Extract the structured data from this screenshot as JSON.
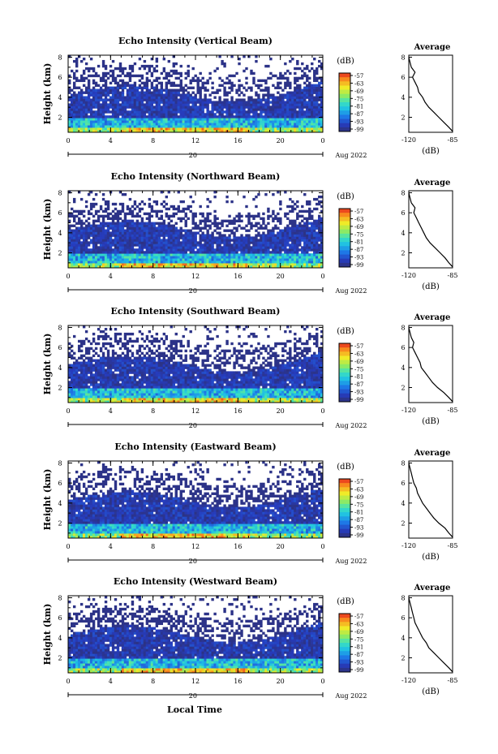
{
  "figure": {
    "x_axis_title": "Local Time",
    "date_label": "Aug 2022",
    "day_label": "20",
    "y_axis_title": "Height (km)",
    "colorbar_unit": "(dB)",
    "profile_title": "Average",
    "profile_xlabel": "(dB)"
  },
  "chart_data": [
    {
      "type": "heatmap",
      "title": "Echo Intensity (Vertical Beam)",
      "x_ticks": [
        "0",
        "4",
        "8",
        "12",
        "16",
        "20",
        "0"
      ],
      "xlim": [
        0,
        24
      ],
      "xlabel": "",
      "y_ticks": [
        "2",
        "4",
        "6",
        "8"
      ],
      "ylim": [
        0.5,
        8.2
      ],
      "ylabel": "Height (km)",
      "colorbar": {
        "unit": "(dB)",
        "ticks": [
          "-57",
          "-63",
          "-69",
          "-75",
          "-81",
          "-87",
          "-93",
          "-99"
        ],
        "range": [
          -99,
          -57
        ]
      },
      "average_profile": {
        "title": "Average",
        "xlabel": "(dB)",
        "x_ticks": [
          "-120",
          "-85"
        ],
        "xlim": [
          -120,
          -85
        ],
        "y_ticks": [
          "2",
          "4",
          "6",
          "8"
        ],
        "ylim": [
          0.5,
          8.2
        ],
        "points": [
          [
            -85,
            0.6
          ],
          [
            -88,
            1.0
          ],
          [
            -92,
            1.5
          ],
          [
            -96,
            2.0
          ],
          [
            -100,
            2.5
          ],
          [
            -104,
            3.0
          ],
          [
            -107,
            3.5
          ],
          [
            -109,
            4.0
          ],
          [
            -112,
            4.5
          ],
          [
            -113,
            5.0
          ],
          [
            -115,
            5.5
          ],
          [
            -117,
            6.0
          ],
          [
            -115,
            6.5
          ],
          [
            -118,
            7.0
          ],
          [
            -119,
            7.5
          ],
          [
            -120,
            8.0
          ]
        ]
      }
    },
    {
      "type": "heatmap",
      "title": "Echo Intensity (Northward Beam)",
      "x_ticks": [
        "0",
        "4",
        "8",
        "12",
        "16",
        "20",
        "0"
      ],
      "xlim": [
        0,
        24
      ],
      "xlabel": "",
      "y_ticks": [
        "2",
        "4",
        "6",
        "8"
      ],
      "ylim": [
        0.5,
        8.2
      ],
      "ylabel": "Height (km)",
      "colorbar": {
        "unit": "(dB)",
        "ticks": [
          "-57",
          "-63",
          "-69",
          "-75",
          "-81",
          "-87",
          "-93",
          "-99"
        ],
        "range": [
          -99,
          -57
        ]
      },
      "average_profile": {
        "title": "Average",
        "xlabel": "(dB)",
        "x_ticks": [
          "-120",
          "-85"
        ],
        "xlim": [
          -120,
          -85
        ],
        "y_ticks": [
          "2",
          "4",
          "6",
          "8"
        ],
        "ylim": [
          0.5,
          8.2
        ],
        "points": [
          [
            -85,
            0.6
          ],
          [
            -88,
            1.0
          ],
          [
            -91,
            1.5
          ],
          [
            -95,
            2.0
          ],
          [
            -99,
            2.5
          ],
          [
            -103,
            3.0
          ],
          [
            -106,
            3.5
          ],
          [
            -108,
            4.0
          ],
          [
            -110,
            4.5
          ],
          [
            -112,
            5.0
          ],
          [
            -114,
            5.5
          ],
          [
            -116,
            6.0
          ],
          [
            -115,
            6.5
          ],
          [
            -118,
            7.0
          ],
          [
            -119,
            7.5
          ],
          [
            -120,
            8.0
          ]
        ]
      }
    },
    {
      "type": "heatmap",
      "title": "Echo Intensity (Southward Beam)",
      "x_ticks": [
        "0",
        "4",
        "8",
        "12",
        "16",
        "20",
        "0"
      ],
      "xlim": [
        0,
        24
      ],
      "xlabel": "",
      "y_ticks": [
        "2",
        "4",
        "6",
        "8"
      ],
      "ylim": [
        0.5,
        8.2
      ],
      "ylabel": "Height (km)",
      "colorbar": {
        "unit": "(dB)",
        "ticks": [
          "-57",
          "-63",
          "-69",
          "-75",
          "-81",
          "-87",
          "-93",
          "-99"
        ],
        "range": [
          -99,
          -57
        ]
      },
      "average_profile": {
        "title": "Average",
        "xlabel": "(dB)",
        "x_ticks": [
          "-120",
          "-85"
        ],
        "xlim": [
          -120,
          -85
        ],
        "y_ticks": [
          "2",
          "4",
          "6",
          "8"
        ],
        "ylim": [
          0.5,
          8.2
        ],
        "points": [
          [
            -85,
            0.6
          ],
          [
            -88,
            1.0
          ],
          [
            -92,
            1.5
          ],
          [
            -97,
            2.0
          ],
          [
            -101,
            2.5
          ],
          [
            -104,
            3.0
          ],
          [
            -107,
            3.5
          ],
          [
            -110,
            4.0
          ],
          [
            -111,
            4.5
          ],
          [
            -113,
            5.0
          ],
          [
            -115,
            5.5
          ],
          [
            -117,
            6.0
          ],
          [
            -116,
            6.5
          ],
          [
            -118,
            7.0
          ],
          [
            -119,
            7.5
          ],
          [
            -120,
            8.0
          ]
        ]
      }
    },
    {
      "type": "heatmap",
      "title": "Echo Intensity (Eastward Beam)",
      "x_ticks": [
        "0",
        "4",
        "8",
        "12",
        "16",
        "20",
        "0"
      ],
      "xlim": [
        0,
        24
      ],
      "xlabel": "",
      "y_ticks": [
        "2",
        "4",
        "6",
        "8"
      ],
      "ylim": [
        0.5,
        8.2
      ],
      "ylabel": "Height (km)",
      "colorbar": {
        "unit": "(dB)",
        "ticks": [
          "-57",
          "-63",
          "-69",
          "-75",
          "-81",
          "-87",
          "-93",
          "-99"
        ],
        "range": [
          -99,
          -57
        ]
      },
      "average_profile": {
        "title": "Average",
        "xlabel": "(dB)",
        "x_ticks": [
          "-120",
          "-85"
        ],
        "xlim": [
          -120,
          -85
        ],
        "y_ticks": [
          "2",
          "4",
          "6",
          "8"
        ],
        "ylim": [
          0.5,
          8.2
        ],
        "points": [
          [
            -85,
            0.6
          ],
          [
            -88,
            1.0
          ],
          [
            -91,
            1.5
          ],
          [
            -96,
            2.0
          ],
          [
            -100,
            2.5
          ],
          [
            -103,
            3.0
          ],
          [
            -106,
            3.5
          ],
          [
            -109,
            4.0
          ],
          [
            -111,
            4.5
          ],
          [
            -113,
            5.0
          ],
          [
            -114,
            5.5
          ],
          [
            -116,
            6.0
          ],
          [
            -117,
            6.5
          ],
          [
            -118,
            7.0
          ],
          [
            -119,
            7.5
          ],
          [
            -120,
            8.0
          ]
        ]
      }
    },
    {
      "type": "heatmap",
      "title": "Echo Intensity (Westward Beam)",
      "x_ticks": [
        "0",
        "4",
        "8",
        "12",
        "16",
        "20",
        "0"
      ],
      "xlim": [
        0,
        24
      ],
      "xlabel": "Local Time",
      "y_ticks": [
        "2",
        "4",
        "6",
        "8"
      ],
      "ylim": [
        0.5,
        8.2
      ],
      "ylabel": "Height (km)",
      "colorbar": {
        "unit": "(dB)",
        "ticks": [
          "-57",
          "-63",
          "-69",
          "-75",
          "-81",
          "-87",
          "-93",
          "-99"
        ],
        "range": [
          -99,
          -57
        ]
      },
      "average_profile": {
        "title": "Average",
        "xlabel": "(dB)",
        "x_ticks": [
          "-120",
          "-85"
        ],
        "xlim": [
          -120,
          -85
        ],
        "y_ticks": [
          "2",
          "4",
          "6",
          "8"
        ],
        "ylim": [
          0.5,
          8.2
        ],
        "points": [
          [
            -85,
            0.6
          ],
          [
            -88,
            1.0
          ],
          [
            -92,
            1.5
          ],
          [
            -96,
            2.0
          ],
          [
            -100,
            2.5
          ],
          [
            -104,
            3.0
          ],
          [
            -106,
            3.5
          ],
          [
            -109,
            4.0
          ],
          [
            -111,
            4.5
          ],
          [
            -113,
            5.0
          ],
          [
            -115,
            5.5
          ],
          [
            -116,
            6.0
          ],
          [
            -117,
            6.5
          ],
          [
            -118,
            7.0
          ],
          [
            -119,
            7.5
          ],
          [
            -120,
            8.0
          ]
        ]
      }
    }
  ]
}
